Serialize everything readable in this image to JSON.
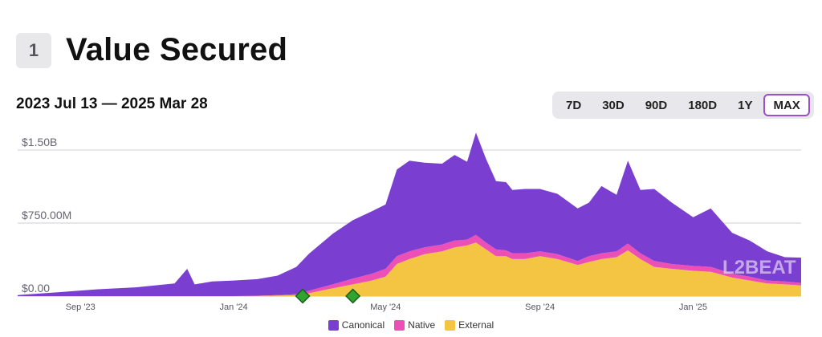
{
  "header": {
    "section_number": "1",
    "title": "Value Secured"
  },
  "date_range": "2023 Jul 13 — 2025 Mar 28",
  "filters": [
    {
      "label": "7D",
      "active": false
    },
    {
      "label": "30D",
      "active": false
    },
    {
      "label": "90D",
      "active": false
    },
    {
      "label": "180D",
      "active": false
    },
    {
      "label": "1Y",
      "active": false
    },
    {
      "label": "MAX",
      "active": true
    }
  ],
  "watermark": "L2BEAT",
  "chart_data": {
    "type": "area",
    "stacked": true,
    "x_start": "2023-07-13",
    "x_end": "2025-03-28",
    "xticks": [
      {
        "label": "Sep '23",
        "date": "2023-09-01"
      },
      {
        "label": "Jan '24",
        "date": "2024-01-01"
      },
      {
        "label": "May '24",
        "date": "2024-05-01"
      },
      {
        "label": "Sep '24",
        "date": "2024-09-01"
      },
      {
        "label": "Jan '25",
        "date": "2025-01-01"
      }
    ],
    "yticks": [
      {
        "label": "$0.00",
        "value": 0
      },
      {
        "label": "$750.00M",
        "value": 750
      },
      {
        "label": "$1.50B",
        "value": 1500
      }
    ],
    "ylim": [
      0,
      1500
    ],
    "y_unit": "M USD",
    "grid": true,
    "legend_position": "bottom-center",
    "colors": {
      "Canonical": "#7a3fd0",
      "Native": "#ec4fb6",
      "External": "#f4c542",
      "grid": "#cfcfd4",
      "milestone": "#2fa52f"
    },
    "x": [
      "2023-07-13",
      "2023-08-15",
      "2023-09-15",
      "2023-10-15",
      "2023-11-15",
      "2023-11-25",
      "2023-12-01",
      "2023-12-15",
      "2024-01-01",
      "2024-01-20",
      "2024-02-05",
      "2024-02-20",
      "2024-03-01",
      "2024-03-20",
      "2024-04-05",
      "2024-04-20",
      "2024-05-01",
      "2024-05-10",
      "2024-05-20",
      "2024-06-01",
      "2024-06-15",
      "2024-06-25",
      "2024-07-05",
      "2024-07-12",
      "2024-07-20",
      "2024-07-28",
      "2024-08-05",
      "2024-08-10",
      "2024-08-20",
      "2024-09-01",
      "2024-09-15",
      "2024-10-01",
      "2024-10-10",
      "2024-10-20",
      "2024-11-01",
      "2024-11-10",
      "2024-11-20",
      "2024-12-01",
      "2024-12-15",
      "2025-01-01",
      "2025-01-15",
      "2025-02-01",
      "2025-02-15",
      "2025-03-01",
      "2025-03-15",
      "2025-03-28"
    ],
    "series": [
      {
        "name": "Canonical",
        "values": [
          10,
          40,
          70,
          90,
          130,
          280,
          120,
          150,
          160,
          170,
          200,
          280,
          380,
          520,
          600,
          640,
          660,
          890,
          930,
          870,
          830,
          880,
          800,
          1050,
          860,
          700,
          700,
          650,
          660,
          640,
          620,
          540,
          550,
          690,
          580,
          850,
          650,
          740,
          630,
          500,
          600,
          420,
          370,
          300,
          250,
          260
        ]
      },
      {
        "name": "Native",
        "values": [
          0,
          0,
          0,
          0,
          0,
          0,
          0,
          0,
          0,
          2,
          5,
          10,
          25,
          40,
          60,
          70,
          80,
          80,
          80,
          70,
          70,
          70,
          60,
          80,
          70,
          70,
          60,
          60,
          60,
          50,
          50,
          40,
          60,
          60,
          60,
          70,
          60,
          60,
          50,
          50,
          50,
          40,
          40,
          30,
          30,
          25
        ]
      },
      {
        "name": "External",
        "values": [
          0,
          0,
          0,
          0,
          0,
          0,
          0,
          0,
          0,
          2,
          5,
          10,
          30,
          80,
          120,
          160,
          200,
          330,
          380,
          430,
          460,
          500,
          520,
          550,
          480,
          410,
          410,
          380,
          380,
          410,
          380,
          320,
          350,
          380,
          400,
          470,
          380,
          300,
          280,
          260,
          250,
          190,
          160,
          130,
          120,
          110
        ]
      }
    ],
    "milestones": [
      {
        "date": "2024-02-25"
      },
      {
        "date": "2024-04-05"
      }
    ]
  }
}
